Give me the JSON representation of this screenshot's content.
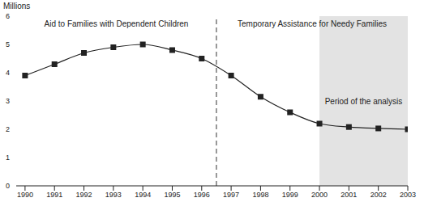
{
  "chart_data": {
    "type": "line",
    "ylabel": "Millions",
    "x": [
      1990,
      1991,
      1992,
      1993,
      1994,
      1995,
      1996,
      1997,
      1998,
      1999,
      2000,
      2001,
      2002,
      2003
    ],
    "values": [
      3.9,
      4.3,
      4.7,
      4.9,
      5.0,
      4.8,
      4.5,
      3.9,
      3.15,
      2.6,
      2.2,
      2.08,
      2.03,
      2.0
    ],
    "color": "#222222",
    "marker": "square",
    "xlim": [
      1989.7,
      2003
    ],
    "xticks": [
      1990,
      1991,
      1992,
      1993,
      1994,
      1995,
      1996,
      1997,
      1998,
      1999,
      2000,
      2001,
      2002,
      2003
    ],
    "ylim": [
      0,
      6
    ],
    "yticks": [
      0,
      1,
      2,
      3,
      4,
      5,
      6
    ],
    "grid": false,
    "divider": 1996.5,
    "line_style": "dashed",
    "shaded": [
      2000,
      2003
    ],
    "annotations": [
      "Aid to Families with Dependent Children",
      "Temporary Assistance for Needy Families",
      "Period of the analysis"
    ]
  }
}
